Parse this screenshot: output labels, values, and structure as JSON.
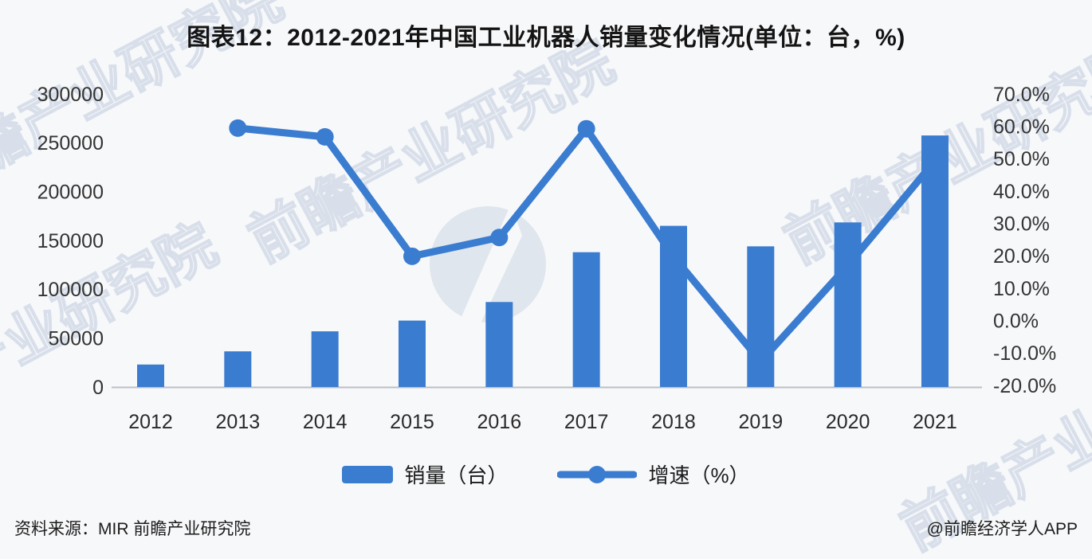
{
  "page": {
    "title": "图表12：2012-2021年中国工业机器人销量变化情况(单位：台，%)",
    "source": "资料来源：MIR 前瞻产业研究院",
    "credit": "@前瞻经济学人APP",
    "watermark": "前瞻产业研究院"
  },
  "legend": {
    "bar_label": "销量（台）",
    "line_label": "增速（%）"
  },
  "colors": {
    "bar": "#3a7cd0",
    "line": "#3a7cd0",
    "axis_text": "#333333",
    "x_label_text": "#2a2a2a",
    "x_axis_line": "#bcc0c6",
    "title_text": "#141414",
    "watermark": "#9db1cb",
    "background": "#f7f8fa"
  },
  "chart_data": {
    "type": "bar+line combo",
    "title": "图表12：2012-2021年中国工业机器人销量变化情况(单位：台，%)",
    "categories": [
      "2012",
      "2013",
      "2014",
      "2015",
      "2016",
      "2017",
      "2018",
      "2019",
      "2020",
      "2021"
    ],
    "series": [
      {
        "name": "销量（台）",
        "type": "bar",
        "axis": "left",
        "values": [
          23000,
          36500,
          57000,
          68000,
          87000,
          138000,
          165000,
          144000,
          168500,
          257500
        ]
      },
      {
        "name": "增速（%）",
        "type": "line",
        "axis": "right",
        "values": [
          null,
          59.5,
          56.8,
          19.9,
          25.7,
          59.3,
          19.8,
          -12.6,
          17.1,
          49.4
        ]
      }
    ],
    "left_axis": {
      "min": 0,
      "max": 300000,
      "tick_step": 50000,
      "tick_labels": [
        "0",
        "50000",
        "100000",
        "150000",
        "200000",
        "250000",
        "300000"
      ]
    },
    "right_axis": {
      "min": -20,
      "max": 70,
      "tick_step": 10,
      "tick_labels": [
        "-20.0%",
        "-10.0%",
        "0.0%",
        "10.0%",
        "20.0%",
        "30.0%",
        "40.0%",
        "50.0%",
        "60.0%",
        "70.0%"
      ]
    },
    "grid": false,
    "legend_position": "bottom"
  }
}
